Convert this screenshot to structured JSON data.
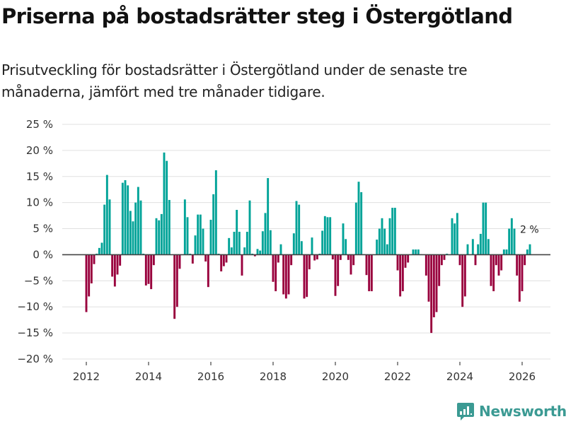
{
  "header": {
    "title": "Priserna på bostadsrätter steg i Östergötland",
    "subtitle": "Prisutveckling för bostadsrätter i Östergötland under de senaste tre månaderna, jämfört med tre månader tidigare."
  },
  "brand": {
    "name": "Newsworthy",
    "color": "#3b9a93"
  },
  "colors": {
    "positive": "#00a398",
    "negative": "#99003d",
    "zero_line": "#444444",
    "grid": "#e0e0e0"
  },
  "chart_data": {
    "type": "bar",
    "title": "Priserna på bostadsrätter steg i Östergötland",
    "xlabel": "",
    "ylabel": "",
    "ylim": [
      -20,
      25
    ],
    "yticks": [
      25,
      20,
      15,
      10,
      5,
      0,
      -5,
      -10,
      -15,
      -20
    ],
    "ytick_labels": [
      "25 %",
      "20 %",
      "15 %",
      "10 %",
      "5 %",
      "0 %",
      "−5 %",
      "−10 %",
      "−15 %",
      "−20 %"
    ],
    "xticks": [
      "2012",
      "2014",
      "2016",
      "2018",
      "2020",
      "2022",
      "2024",
      "2026"
    ],
    "start": "2012-01",
    "frequency": "monthly",
    "grid": true,
    "annotation": {
      "label": "2 %",
      "at": "last"
    },
    "values": [
      -11,
      -8,
      -5.5,
      -1.8,
      0.2,
      1.3,
      2.3,
      9.6,
      15.3,
      10.6,
      -4.2,
      -6.1,
      -3.8,
      -2.1,
      13.8,
      14.3,
      13.3,
      8.4,
      6.4,
      10,
      13,
      10.4,
      0.2,
      -5.9,
      -5.6,
      -6.6,
      -2,
      7,
      6.6,
      7.8,
      19.6,
      18,
      10.5,
      0,
      -12.3,
      -10,
      -2.7,
      0,
      10.6,
      7.2,
      0.2,
      -1.7,
      3.7,
      7.7,
      7.7,
      5,
      -1.3,
      -6.2,
      6.7,
      11.6,
      16.2,
      0.2,
      -3.2,
      -2.2,
      -1.5,
      3.2,
      1.4,
      4.4,
      8.6,
      4.4,
      -4,
      1.4,
      4.4,
      10.4,
      0.2,
      -0.3,
      1.1,
      0.8,
      4.5,
      8,
      14.7,
      4.7,
      -5.2,
      -7,
      -1.5,
      2,
      -7.6,
      -8.4,
      -7.6,
      -2,
      4.1,
      10.3,
      9.6,
      2.6,
      -8.4,
      -8.1,
      -2.8,
      3.3,
      -1.1,
      -0.9,
      0.2,
      4.6,
      7.4,
      7.2,
      7.2,
      -0.9,
      -7.9,
      -6,
      -1,
      6,
      3,
      -1,
      -3.8,
      -2,
      10,
      14,
      12,
      0.1,
      -3.9,
      -7,
      -7,
      0,
      2.9,
      5,
      7,
      5,
      2,
      7,
      9,
      9,
      -3,
      -8,
      -7,
      -2.5,
      -1.5,
      0,
      1,
      1,
      1,
      0.1,
      0,
      -4,
      -9,
      -15,
      -12,
      -11,
      -6,
      -2,
      -1,
      0.2,
      0,
      7,
      6,
      8,
      -2,
      -10,
      -8,
      2,
      0,
      3,
      -2,
      2,
      4,
      10,
      10,
      3,
      -6,
      -7,
      -2,
      -4,
      -3,
      1,
      1,
      5,
      7,
      5,
      -4,
      -9,
      -7,
      -2,
      1,
      2
    ]
  }
}
